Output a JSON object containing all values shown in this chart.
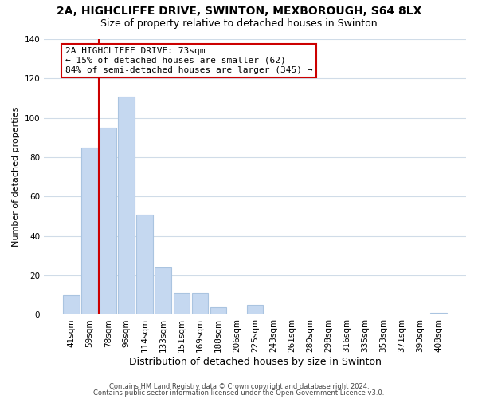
{
  "title": "2A, HIGHCLIFFE DRIVE, SWINTON, MEXBOROUGH, S64 8LX",
  "subtitle": "Size of property relative to detached houses in Swinton",
  "xlabel": "Distribution of detached houses by size in Swinton",
  "ylabel": "Number of detached properties",
  "categories": [
    "41sqm",
    "59sqm",
    "78sqm",
    "96sqm",
    "114sqm",
    "133sqm",
    "151sqm",
    "169sqm",
    "188sqm",
    "206sqm",
    "225sqm",
    "243sqm",
    "261sqm",
    "280sqm",
    "298sqm",
    "316sqm",
    "335sqm",
    "353sqm",
    "371sqm",
    "390sqm",
    "408sqm"
  ],
  "values": [
    10,
    85,
    95,
    111,
    51,
    24,
    11,
    11,
    4,
    0,
    5,
    0,
    0,
    0,
    0,
    0,
    0,
    0,
    0,
    0,
    1
  ],
  "bar_color": "#c5d8f0",
  "bar_edge_color": "#aac4e0",
  "ylim": [
    0,
    140
  ],
  "yticks": [
    0,
    20,
    40,
    60,
    80,
    100,
    120,
    140
  ],
  "vline_color": "#cc0000",
  "annotation_title": "2A HIGHCLIFFE DRIVE: 73sqm",
  "annotation_line1": "← 15% of detached houses are smaller (62)",
  "annotation_line2": "84% of semi-detached houses are larger (345) →",
  "annotation_box_color": "#ffffff",
  "annotation_box_edge": "#cc0000",
  "footer1": "Contains HM Land Registry data © Crown copyright and database right 2024.",
  "footer2": "Contains public sector information licensed under the Open Government Licence v3.0.",
  "background_color": "#ffffff",
  "grid_color": "#d0dce8",
  "title_fontsize": 10,
  "subtitle_fontsize": 9,
  "xlabel_fontsize": 9,
  "ylabel_fontsize": 8,
  "tick_fontsize": 7.5,
  "footer_fontsize": 6
}
